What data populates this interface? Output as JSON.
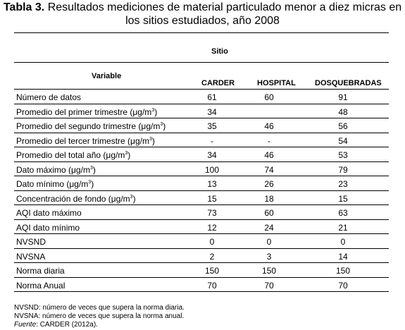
{
  "caption": {
    "label": "Tabla 3.",
    "line1": "Resultados mediciones de material particulado menor a diez micras en",
    "line2": "los sitios estudiados, año 2008"
  },
  "header": {
    "group": "Sitio",
    "variable": "Variable",
    "columns": [
      "CARDER",
      "HOSPITAL",
      "DOSQUEBRADAS"
    ]
  },
  "rows": [
    {
      "label": "Número de datos",
      "sup": "",
      "after": "",
      "values": [
        "61",
        "60",
        "91"
      ]
    },
    {
      "label": "Promedio del primer trimestre (μg/m",
      "sup": "3",
      "after": ")",
      "values": [
        "34",
        "",
        "48"
      ]
    },
    {
      "label": "Promedio del segundo trimestre (μg/m",
      "sup": "3",
      "after": ")",
      "values": [
        "35",
        "46",
        "56"
      ]
    },
    {
      "label": "Promedio del tercer trimestre (μg/m",
      "sup": "3",
      "after": ")",
      "values": [
        "-",
        "-",
        "54"
      ]
    },
    {
      "label": "Promedio del total año (μg/m",
      "sup": "3",
      "after": ")",
      "values": [
        "34",
        "46",
        "53"
      ]
    },
    {
      "label": "Dato máximo (μg/m",
      "sup": "3",
      "after": ")",
      "values": [
        "100",
        "74",
        "79"
      ]
    },
    {
      "label": "Dato mínimo (μg/m",
      "sup": "3",
      "after": ")",
      "values": [
        "13",
        "26",
        "23"
      ]
    },
    {
      "label": "Concentración de fondo (μg/m",
      "sup": "3",
      "after": ")",
      "values": [
        "15",
        "18",
        "15"
      ]
    },
    {
      "label": "AQI dato máximo",
      "sup": "",
      "after": "",
      "values": [
        "73",
        "60",
        "63"
      ]
    },
    {
      "label": "AQI dato mínimo",
      "sup": "",
      "after": "",
      "values": [
        "12",
        "24",
        "21"
      ]
    },
    {
      "label": "NVSND",
      "sup": "",
      "after": "",
      "values": [
        "0",
        "0",
        "0"
      ]
    },
    {
      "label": "NVSNA",
      "sup": "",
      "after": "",
      "values": [
        "2",
        "3",
        "14"
      ]
    },
    {
      "label": "Norma diaria",
      "sup": "",
      "after": "",
      "values": [
        "150",
        "150",
        "150"
      ]
    },
    {
      "label": "Norma Anual",
      "sup": "",
      "after": "",
      "values": [
        "70",
        "70",
        "70"
      ]
    }
  ],
  "footnotes": {
    "nvsnd": "NVSND: número de veces que supera la norma diaria.",
    "nvsna": "NVSNA: número de veces que supera la norma anual.",
    "source_label": "Fuente",
    "source_text": ": CARDER (2012a)."
  }
}
